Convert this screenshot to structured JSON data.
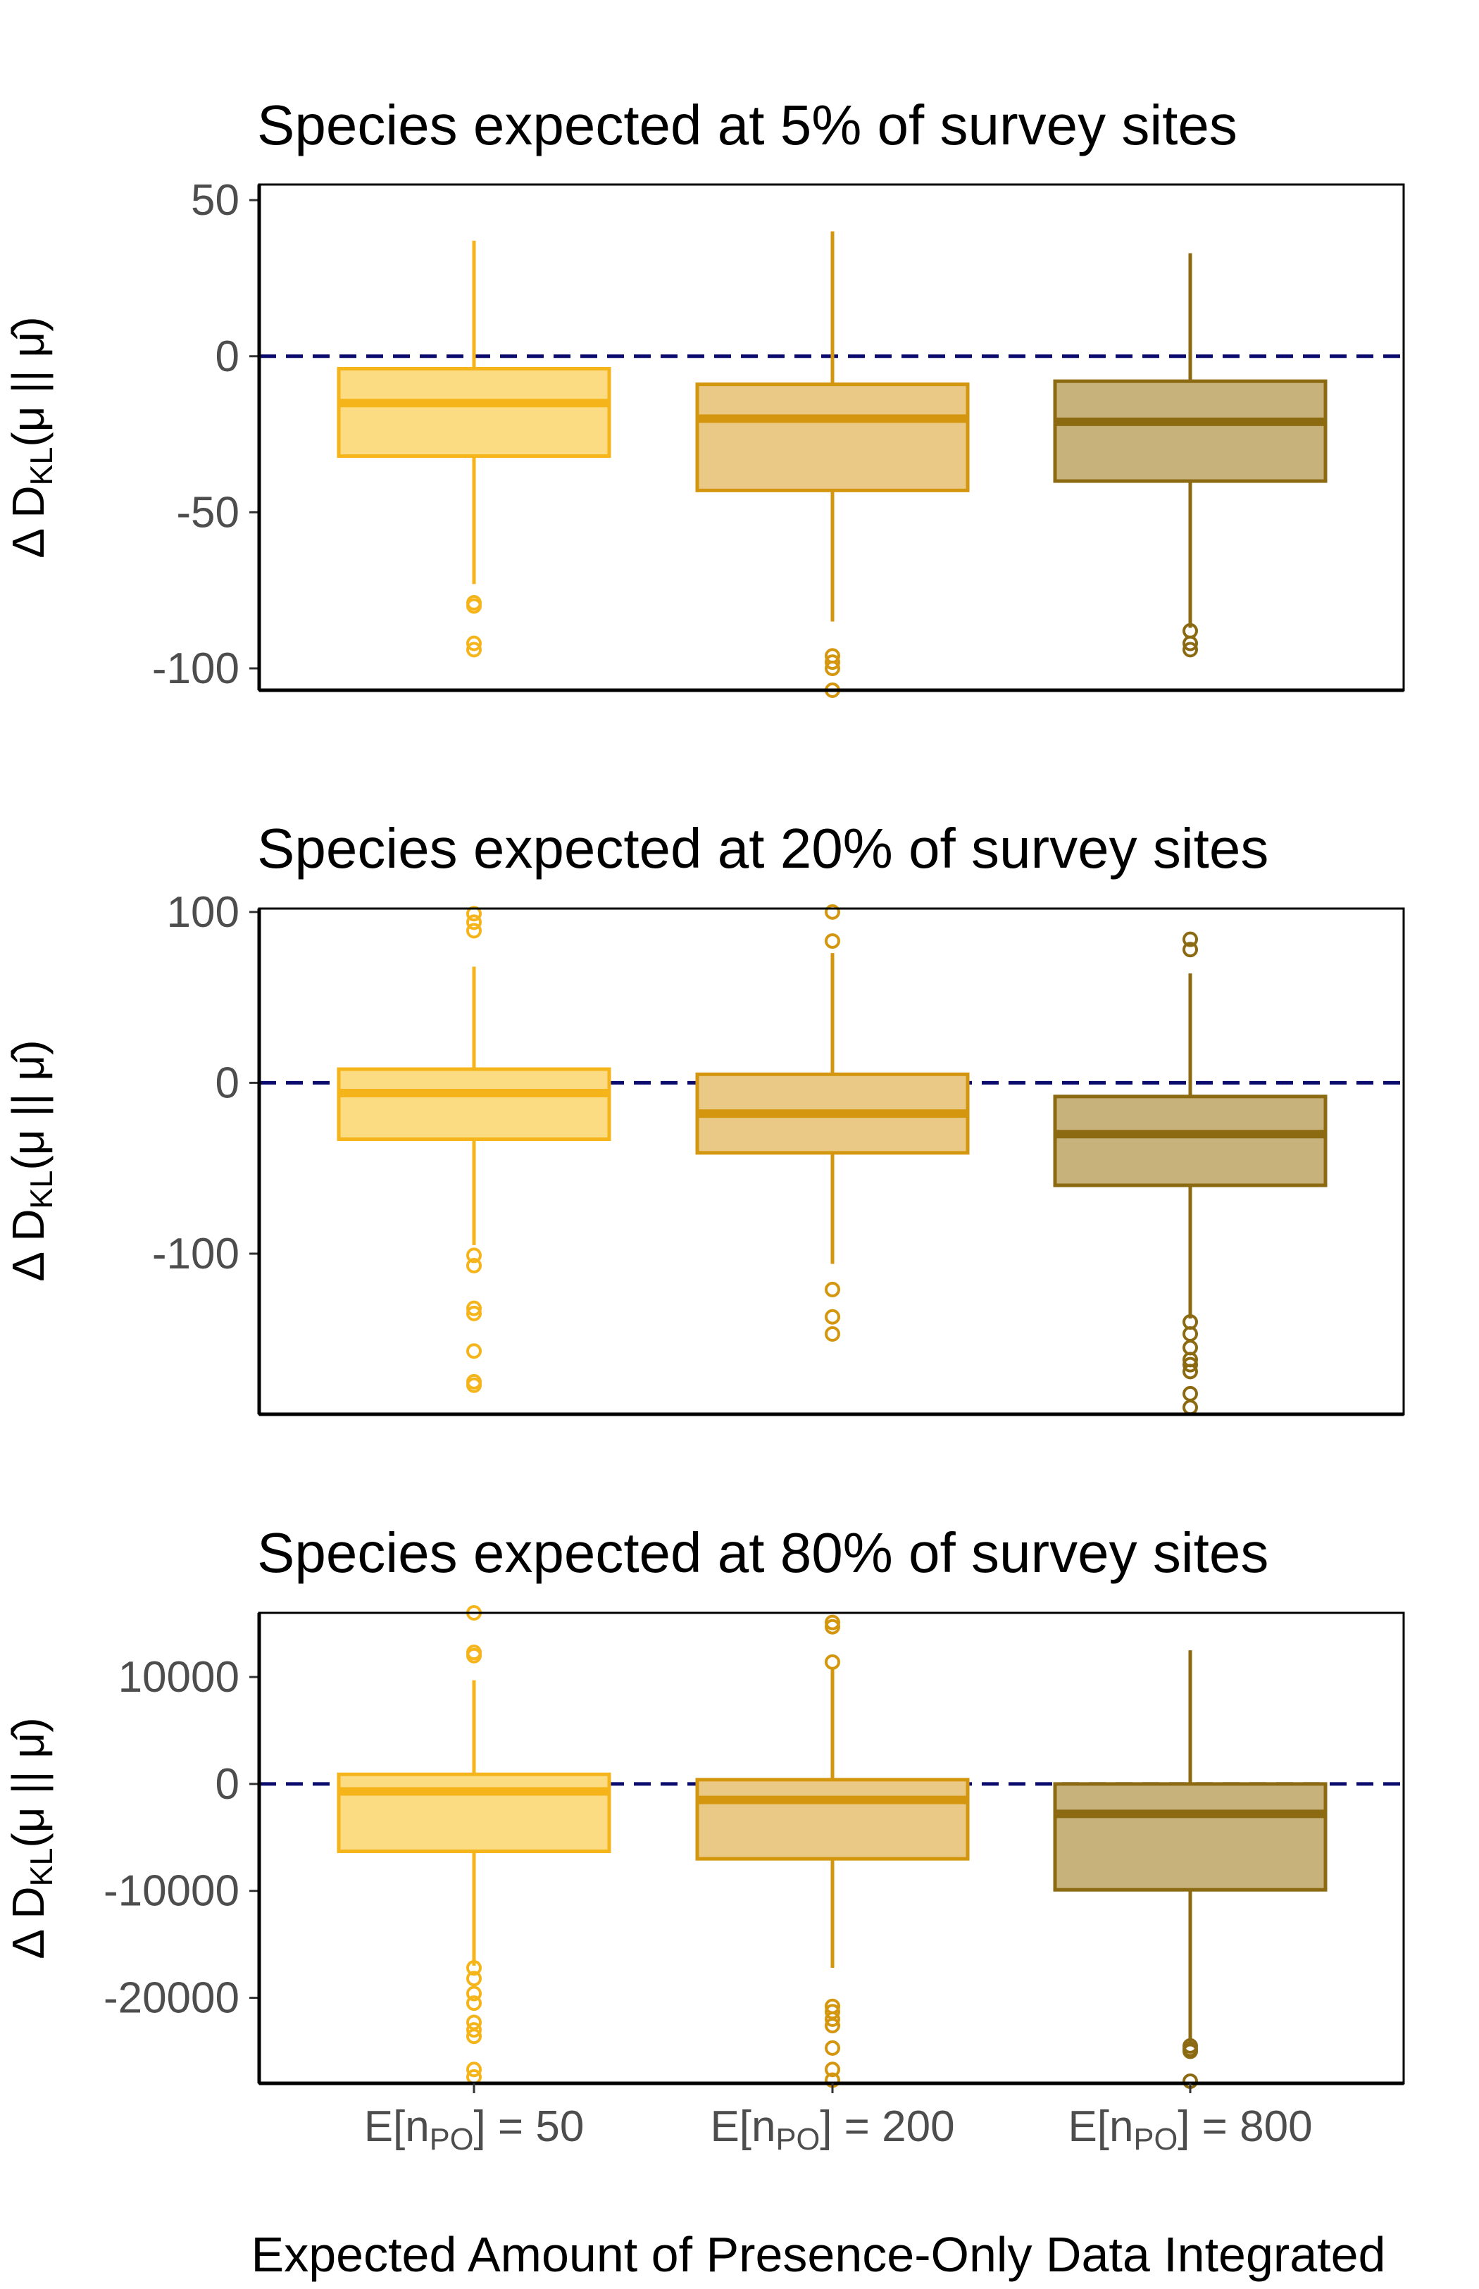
{
  "figure": {
    "xlabel": "Expected Amount of Presence-Only Data Integrated",
    "ylabel": "Δ D_KL(μ || μ̂)",
    "categories": [
      "E[n_PO] = 50",
      "E[n_PO] = 200",
      "E[n_PO] = 800"
    ],
    "series_colors": [
      "#F5B51A",
      "#D4960F",
      "#8C6A12"
    ],
    "series_fill_colors": [
      "#FBDC82",
      "#E9C985",
      "#C7B27C"
    ],
    "reference_line": {
      "y": 0,
      "color": "#0B0B6E",
      "style": "dashed"
    }
  },
  "chart_data": [
    {
      "type": "box",
      "title": "Species expected at 5% of survey sites",
      "ylim": [
        -107,
        55
      ],
      "yticks": [
        50,
        0,
        -50,
        -100
      ],
      "categories": [
        "E[n_PO] = 50",
        "E[n_PO] = 200",
        "E[n_PO] = 800"
      ],
      "boxes": [
        {
          "whisker_low": -73,
          "q1": -32,
          "median": -15,
          "q3": -4,
          "whisker_high": 37,
          "outliers": [
            -79,
            -80,
            -92,
            -94
          ]
        },
        {
          "whisker_low": -85,
          "q1": -43,
          "median": -20,
          "q3": -9,
          "whisker_high": 40,
          "outliers": [
            -96,
            -98,
            -100,
            -107
          ]
        },
        {
          "whisker_low": -87,
          "q1": -40,
          "median": -21,
          "q3": -8,
          "whisker_high": 33,
          "outliers": [
            -88,
            -92,
            -94
          ]
        }
      ]
    },
    {
      "type": "box",
      "title": "Species expected at 20% of survey sites",
      "ylim": [
        -194,
        102
      ],
      "yticks": [
        100,
        0,
        -100
      ],
      "categories": [
        "E[n_PO] = 50",
        "E[n_PO] = 200",
        "E[n_PO] = 800"
      ],
      "boxes": [
        {
          "whisker_low": -95,
          "q1": -33,
          "median": -6,
          "q3": 8,
          "whisker_high": 68,
          "outliers": [
            -101,
            -107,
            -132,
            -135,
            -157,
            -175,
            -177,
            89,
            94,
            99
          ]
        },
        {
          "whisker_low": -106,
          "q1": -41,
          "median": -18,
          "q3": 5,
          "whisker_high": 76,
          "outliers": [
            -121,
            -137,
            -147,
            83,
            100
          ]
        },
        {
          "whisker_low": -138,
          "q1": -60,
          "median": -30,
          "q3": -8,
          "whisker_high": 64,
          "outliers": [
            -140,
            -147,
            -155,
            -162,
            -165,
            -169,
            -182,
            -190,
            78,
            84
          ]
        }
      ]
    },
    {
      "type": "box",
      "title": "Species expected at 80% of survey sites",
      "ylim": [
        -28000,
        16000
      ],
      "yticks": [
        10000,
        0,
        -10000,
        -20000
      ],
      "categories": [
        "E[n_PO] = 50",
        "E[n_PO] = 200",
        "E[n_PO] = 800"
      ],
      "boxes": [
        {
          "whisker_low": -17000,
          "q1": -6300,
          "median": -700,
          "q3": 900,
          "whisker_high": 9700,
          "outliers": [
            -17200,
            -18200,
            -19600,
            -20500,
            -22300,
            -23000,
            -23600,
            -26700,
            -27400,
            12000,
            12300,
            16000
          ]
        },
        {
          "whisker_low": -17200,
          "q1": -7000,
          "median": -1500,
          "q3": 400,
          "whisker_high": 10900,
          "outliers": [
            -20800,
            -21300,
            -22000,
            -22600,
            -24700,
            -26700,
            -27700,
            11400,
            14700,
            15100
          ]
        },
        {
          "whisker_low": -24300,
          "q1": -9900,
          "median": -2800,
          "q3": 0,
          "whisker_high": 12500,
          "outliers": [
            -24500,
            -24800,
            -25000,
            -27800
          ]
        }
      ]
    }
  ]
}
